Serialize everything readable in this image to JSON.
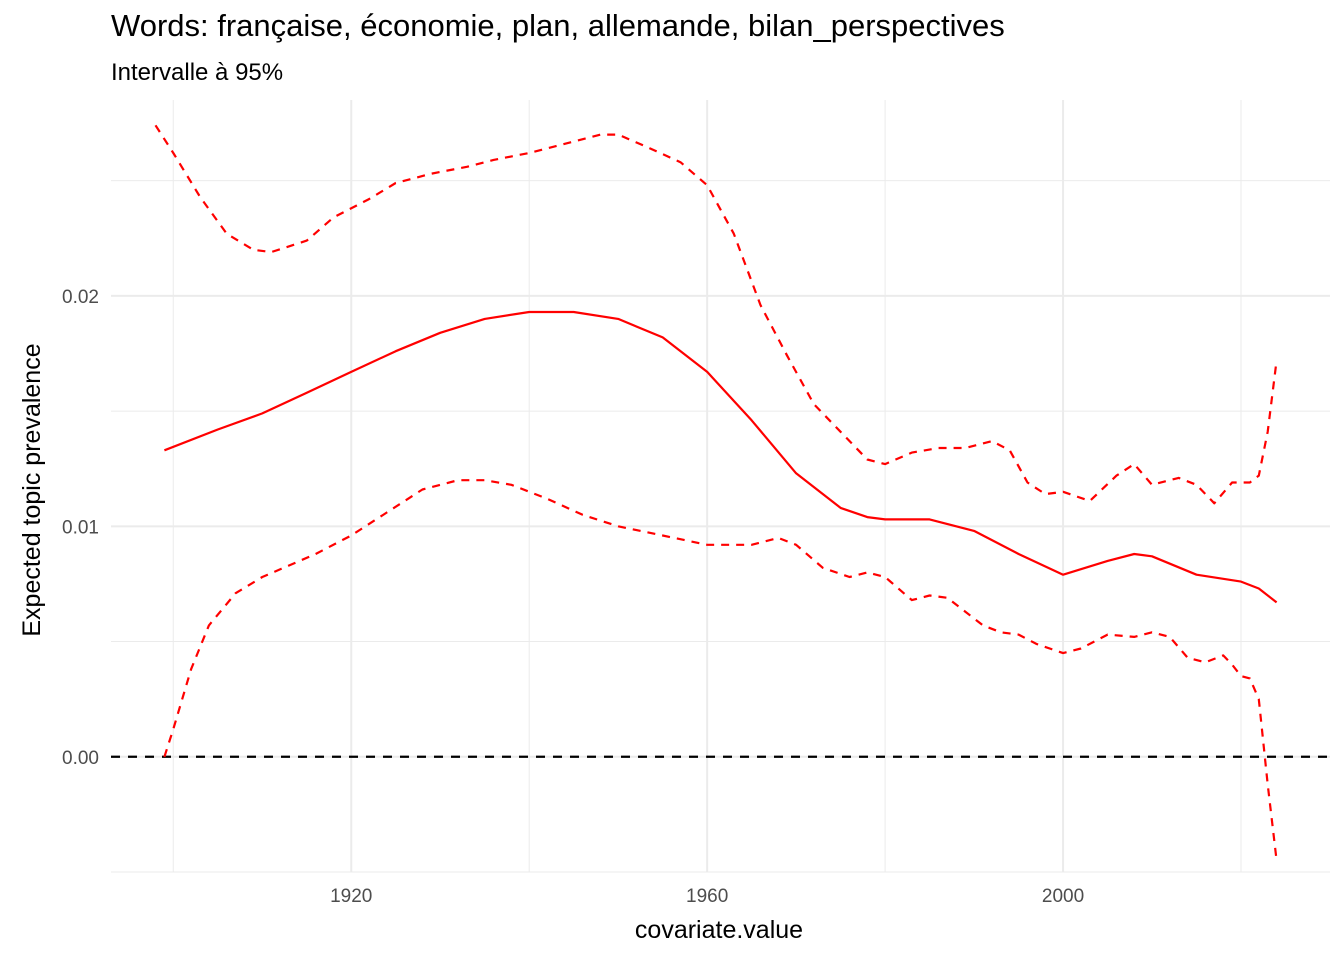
{
  "chart_data": {
    "type": "line",
    "title": "Words: française, économie, plan, allemande, bilan_perspectives",
    "subtitle": "Intervalle à 95%",
    "xlabel": "covariate.value",
    "ylabel": "Expected topic prevalence",
    "xlim": [
      1893,
      2030
    ],
    "ylim": [
      -0.005,
      0.0285
    ],
    "x_ticks": [
      1920,
      1960,
      2000
    ],
    "x_tick_labels": [
      "1920",
      "1960",
      "2000"
    ],
    "y_ticks": [
      0.0,
      0.01,
      0.02
    ],
    "y_tick_labels": [
      "0.00",
      "0.01",
      "0.02"
    ],
    "grid": true,
    "reference_line": {
      "y": 0,
      "style": "dashed",
      "color": "#000000"
    },
    "colors": {
      "estimate": "#ff0000",
      "interval": "#ff0000",
      "grid": "#ebebeb"
    },
    "series": [
      {
        "role": "estimate",
        "style": "solid",
        "x": [
          1899,
          1905,
          1910,
          1915,
          1920,
          1925,
          1930,
          1935,
          1940,
          1943,
          1945,
          1950,
          1955,
          1960,
          1965,
          1970,
          1975,
          1978,
          1980,
          1985,
          1990,
          1995,
          2000,
          2005,
          2008,
          2010,
          2015,
          2020,
          2022,
          2024
        ],
        "y": [
          0.0133,
          0.0142,
          0.0149,
          0.0158,
          0.0167,
          0.0176,
          0.0184,
          0.019,
          0.0193,
          0.0193,
          0.0193,
          0.019,
          0.0182,
          0.0167,
          0.0146,
          0.0123,
          0.0108,
          0.0104,
          0.0103,
          0.0103,
          0.0098,
          0.0088,
          0.0079,
          0.0085,
          0.0088,
          0.0087,
          0.0079,
          0.0076,
          0.0073,
          0.0067
        ]
      },
      {
        "role": "upper",
        "style": "dashed",
        "x": [
          1898,
          1900,
          1903,
          1906,
          1909,
          1911,
          1915,
          1918,
          1922,
          1925,
          1929,
          1933,
          1936,
          1940,
          1944,
          1948,
          1950,
          1953,
          1957,
          1960,
          1963,
          1966,
          1969,
          1972,
          1975,
          1978,
          1980,
          1983,
          1986,
          1989,
          1992,
          1994,
          1996,
          1998,
          2000,
          2003,
          2006,
          2008,
          2010,
          2013,
          2015,
          2017,
          2019,
          2021,
          2022,
          2023,
          2024
        ],
        "y": [
          0.0274,
          0.0262,
          0.0243,
          0.0227,
          0.022,
          0.0219,
          0.0224,
          0.0234,
          0.0242,
          0.0249,
          0.0253,
          0.0256,
          0.0259,
          0.0262,
          0.0266,
          0.027,
          0.027,
          0.0265,
          0.0258,
          0.0248,
          0.0227,
          0.0196,
          0.0174,
          0.0153,
          0.0141,
          0.0129,
          0.0127,
          0.0132,
          0.0134,
          0.0134,
          0.0137,
          0.0133,
          0.0119,
          0.0114,
          0.0115,
          0.0111,
          0.0122,
          0.0127,
          0.0118,
          0.0121,
          0.0118,
          0.011,
          0.0119,
          0.0119,
          0.0122,
          0.0141,
          0.0172
        ]
      },
      {
        "role": "lower",
        "style": "dashed",
        "x": [
          1899,
          1900,
          1902,
          1904,
          1907,
          1910,
          1913,
          1916,
          1920,
          1924,
          1928,
          1932,
          1935,
          1938,
          1942,
          1946,
          1950,
          1955,
          1960,
          1965,
          1968,
          1970,
          1973,
          1976,
          1978,
          1980,
          1983,
          1985,
          1987,
          1989,
          1991,
          1993,
          1995,
          1997,
          2000,
          2002,
          2005,
          2008,
          2010,
          2012,
          2014,
          2016,
          2018,
          2019,
          2020,
          2021,
          2022,
          2023,
          2024
        ],
        "y": [
          0.0,
          0.0012,
          0.0038,
          0.0057,
          0.0071,
          0.0078,
          0.0083,
          0.0088,
          0.0096,
          0.0106,
          0.0116,
          0.012,
          0.012,
          0.0118,
          0.0112,
          0.0105,
          0.01,
          0.0096,
          0.0092,
          0.0092,
          0.0095,
          0.0092,
          0.0082,
          0.0078,
          0.008,
          0.0078,
          0.0068,
          0.007,
          0.0069,
          0.0063,
          0.0057,
          0.0054,
          0.0053,
          0.0049,
          0.0045,
          0.0047,
          0.0053,
          0.0052,
          0.0054,
          0.0052,
          0.0043,
          0.0041,
          0.0044,
          0.004,
          0.0035,
          0.0034,
          0.0025,
          -0.0012,
          -0.0045
        ]
      }
    ]
  }
}
